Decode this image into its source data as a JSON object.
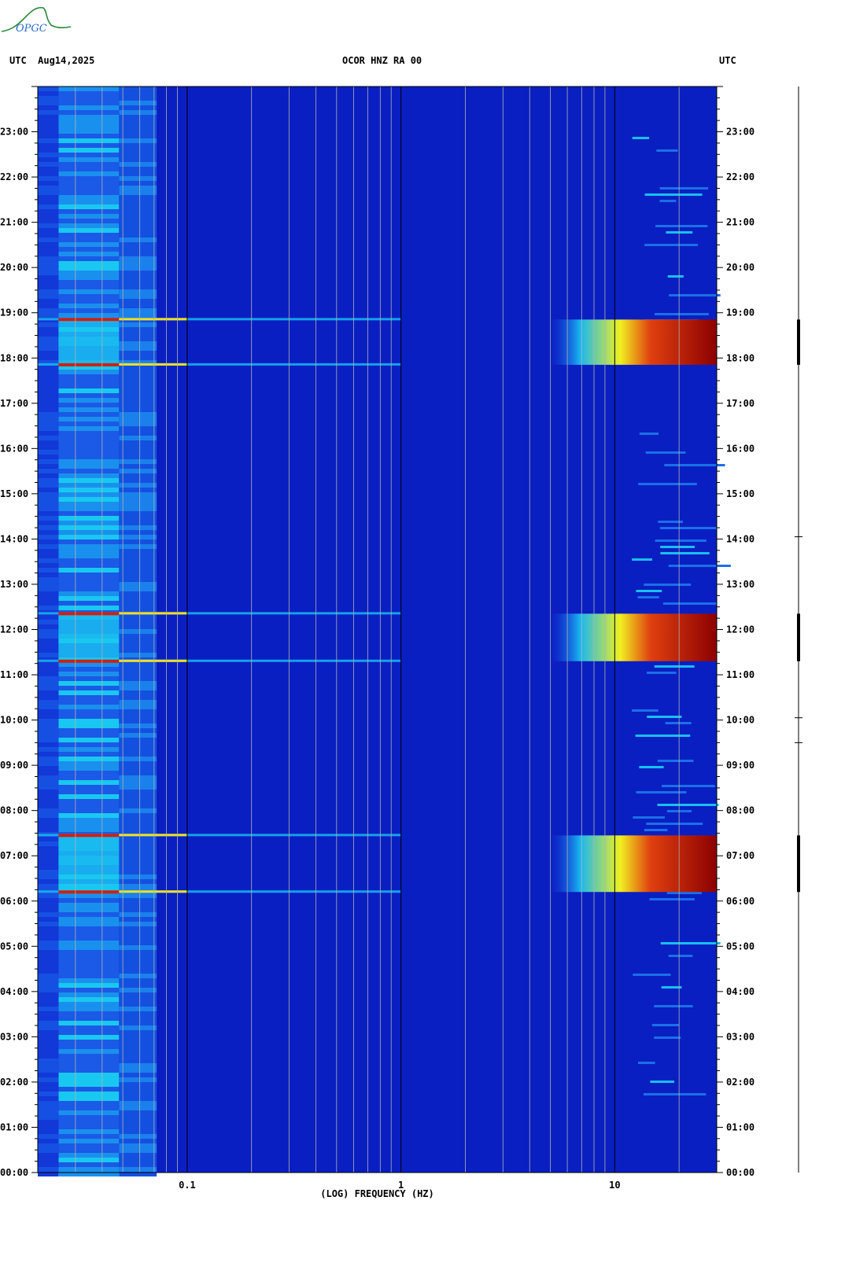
{
  "header": {
    "left": "UTC  Aug14,2025",
    "center": "OCOR HNZ RA 00",
    "right": "UTC"
  },
  "logo": {
    "text": "OPGC",
    "icon": "organization-logo"
  },
  "chart_data": {
    "type": "heatmap",
    "title": "OCOR HNZ RA 00",
    "xlabel": "(LOG) FREQUENCY (HZ)",
    "xscale": "log",
    "xlim": [
      0.02,
      30
    ],
    "x_ticks": [
      {
        "value": 0.1,
        "label": "0.1"
      },
      {
        "value": 1,
        "label": "1"
      },
      {
        "value": 10,
        "label": "10"
      }
    ],
    "ylabel": "UTC",
    "ylim": [
      0,
      24
    ],
    "y_ticks": [
      {
        "value": 0,
        "label": "00:00"
      },
      {
        "value": 1,
        "label": "01:00"
      },
      {
        "value": 2,
        "label": "02:00"
      },
      {
        "value": 3,
        "label": "03:00"
      },
      {
        "value": 4,
        "label": "04:00"
      },
      {
        "value": 5,
        "label": "05:00"
      },
      {
        "value": 6,
        "label": "06:00"
      },
      {
        "value": 7,
        "label": "07:00"
      },
      {
        "value": 8,
        "label": "08:00"
      },
      {
        "value": 9,
        "label": "09:00"
      },
      {
        "value": 10,
        "label": "10:00"
      },
      {
        "value": 11,
        "label": "11:00"
      },
      {
        "value": 12,
        "label": "12:00"
      },
      {
        "value": 13,
        "label": "13:00"
      },
      {
        "value": 14,
        "label": "14:00"
      },
      {
        "value": 15,
        "label": "15:00"
      },
      {
        "value": 16,
        "label": "16:00"
      },
      {
        "value": 17,
        "label": "17:00"
      },
      {
        "value": 18,
        "label": "18:00"
      },
      {
        "value": 19,
        "label": "19:00"
      },
      {
        "value": 20,
        "label": "20:00"
      },
      {
        "value": 21,
        "label": "21:00"
      },
      {
        "value": 22,
        "label": "22:00"
      },
      {
        "value": 23,
        "label": "23:00"
      }
    ],
    "colors": {
      "background": "#0a1fc2",
      "low": "#1040e0",
      "mid": "#19b8f0",
      "high": "#f0f020",
      "peak": "#8b0000"
    },
    "high_energy_bands": [
      {
        "start": 6.2,
        "end": 7.45,
        "fmin": 5,
        "fmax": 30
      },
      {
        "start": 11.3,
        "end": 12.35,
        "fmin": 5,
        "fmax": 30
      },
      {
        "start": 17.85,
        "end": 18.85,
        "fmin": 5,
        "fmax": 30
      }
    ],
    "narrow_lines_hours": [
      6.2,
      7.45,
      11.3,
      12.35,
      17.85,
      18.85
    ],
    "grid": true
  }
}
